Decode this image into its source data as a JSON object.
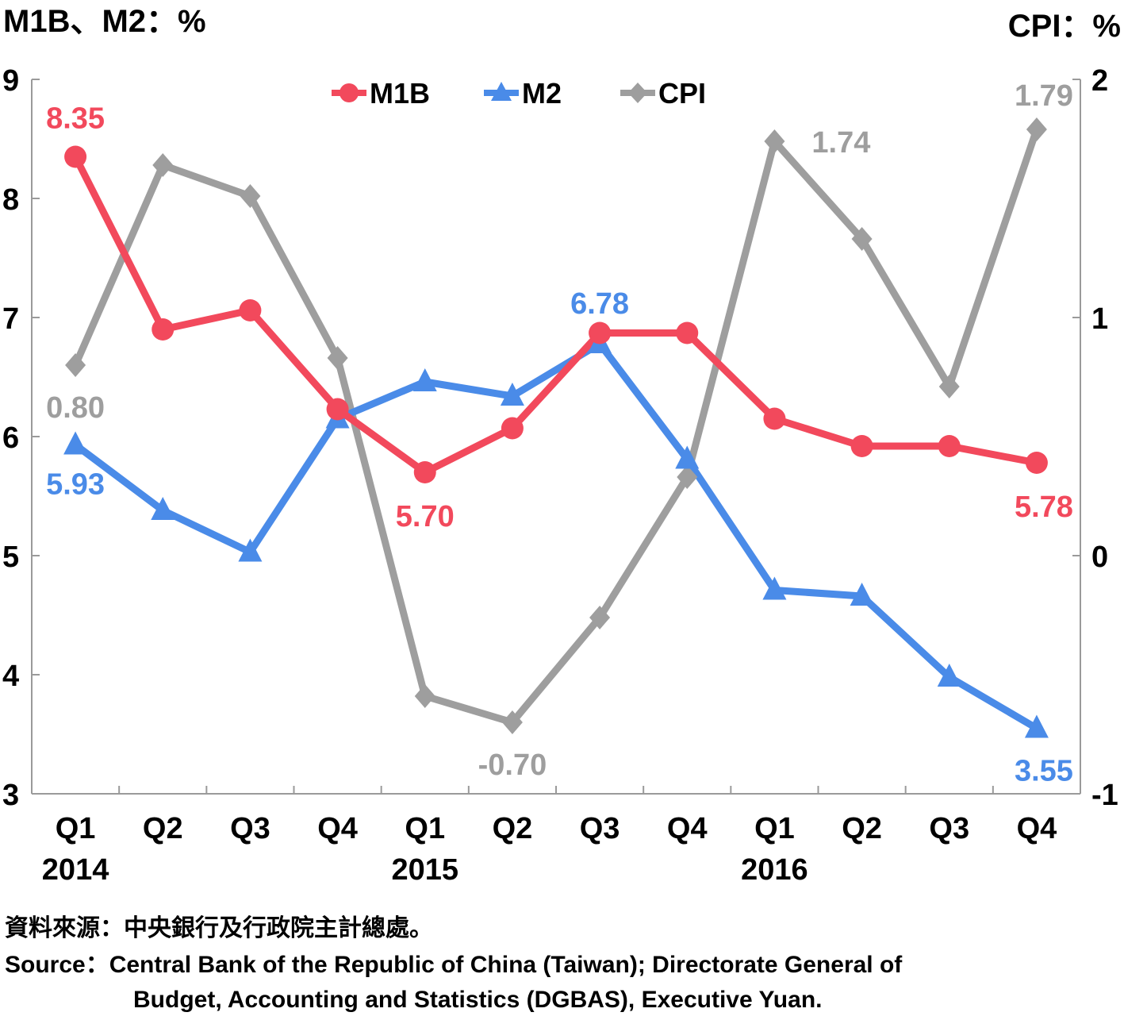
{
  "chart_data": {
    "type": "line",
    "left_axis_title": "M1B、M2：%",
    "right_axis_title": "CPI：%",
    "categories": [
      "Q1",
      "Q2",
      "Q3",
      "Q4",
      "Q1",
      "Q2",
      "Q3",
      "Q4",
      "Q1",
      "Q2",
      "Q3",
      "Q4"
    ],
    "years": [
      "2014",
      "2015",
      "2016"
    ],
    "left_axis": {
      "min": 3,
      "max": 9,
      "ticks": [
        "3",
        "4",
        "5",
        "6",
        "7",
        "8",
        "9"
      ]
    },
    "right_axis": {
      "min": -1,
      "max": 2,
      "ticks": [
        "-1",
        "0",
        "1",
        "2"
      ]
    },
    "series": [
      {
        "name": "M1B",
        "axis": "left",
        "color": "#f2495c",
        "marker": "circle",
        "values": [
          8.35,
          6.9,
          7.06,
          6.23,
          5.7,
          6.07,
          6.87,
          6.87,
          6.15,
          5.92,
          5.92,
          5.78
        ]
      },
      {
        "name": "M2",
        "axis": "left",
        "color": "#4a8be8",
        "marker": "triangle",
        "values": [
          5.93,
          5.38,
          5.03,
          6.15,
          6.46,
          6.34,
          6.78,
          5.81,
          4.71,
          4.66,
          3.98,
          3.55
        ]
      },
      {
        "name": "CPI",
        "axis": "right",
        "color": "#9e9e9e",
        "marker": "diamond",
        "values": [
          0.8,
          1.64,
          1.51,
          0.83,
          -0.59,
          -0.7,
          -0.26,
          0.33,
          1.74,
          1.33,
          0.71,
          1.79
        ]
      }
    ],
    "data_labels": [
      {
        "series": "M1B",
        "index": 0,
        "text": "8.35"
      },
      {
        "series": "M1B",
        "index": 4,
        "text": "5.70"
      },
      {
        "series": "M1B",
        "index": 11,
        "text": "5.78"
      },
      {
        "series": "M2",
        "index": 0,
        "text": "5.93"
      },
      {
        "series": "M2",
        "index": 6,
        "text": "6.78"
      },
      {
        "series": "M2",
        "index": 11,
        "text": "3.55"
      },
      {
        "series": "CPI",
        "index": 0,
        "text": "0.80"
      },
      {
        "series": "CPI",
        "index": 5,
        "text": "-0.70"
      },
      {
        "series": "CPI",
        "index": 8,
        "text": "1.74"
      },
      {
        "series": "CPI",
        "index": 11,
        "text": "1.79"
      }
    ],
    "legend": [
      "M1B",
      "M2",
      "CPI"
    ],
    "legend_position": "top-center"
  },
  "source": {
    "zh": "資料來源：中央銀行及行政院主計總處。",
    "en_line1": "Source：Central Bank of the Republic of China (Taiwan); Directorate General of",
    "en_line2": "Budget, Accounting and Statistics (DGBAS), Executive Yuan."
  }
}
